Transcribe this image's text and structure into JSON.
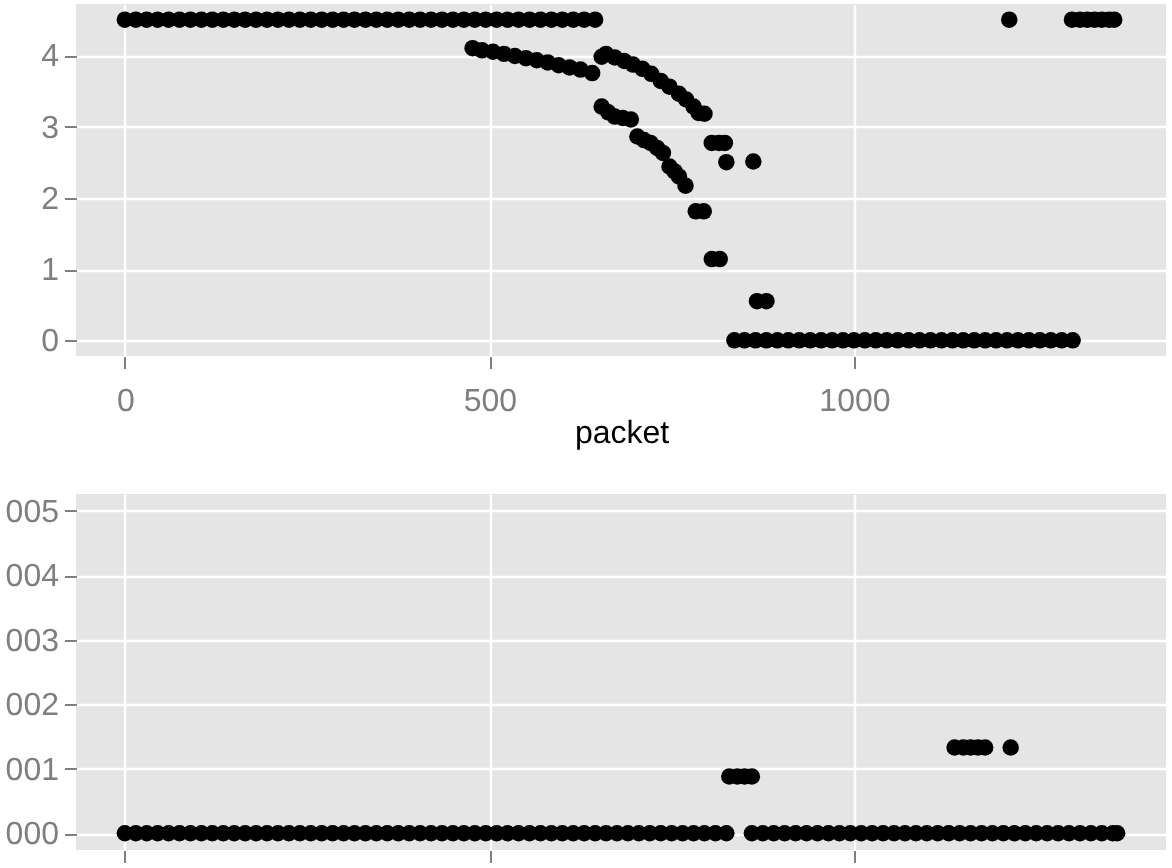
{
  "chart_data": [
    {
      "type": "scatter",
      "xlabel": "packet",
      "marker": "circle",
      "grid": true,
      "xlim": [
        -67,
        1428
      ],
      "ylim": [
        -0.22,
        4.72
      ],
      "xticks": [
        0,
        500,
        1000
      ],
      "yticks": [
        0,
        1,
        2,
        3,
        4
      ],
      "series": [
        {
          "color": "#000000",
          "x": [
            0,
            15,
            30,
            45,
            60,
            75,
            90,
            105,
            120,
            135,
            150,
            165,
            180,
            195,
            210,
            225,
            240,
            255,
            270,
            285,
            300,
            315,
            330,
            345,
            360,
            375,
            390,
            405,
            420,
            435,
            450,
            465,
            480,
            495,
            510,
            525,
            540,
            555,
            570,
            585,
            600,
            615,
            630,
            645,
            477,
            490,
            505,
            520,
            535,
            550,
            565,
            580,
            595,
            610,
            625,
            641,
            654,
            660,
            672,
            685,
            697,
            710,
            722,
            735,
            747,
            760,
            770,
            780,
            787,
            795,
            805,
            815,
            823,
            825,
            862,
            654,
            663,
            672,
            683,
            694,
            703,
            712,
            721,
            730,
            738,
            747,
            754,
            760,
            769,
            783,
            794,
            805,
            816,
            867,
            880,
            836,
            850,
            865,
            880,
            895,
            910,
            925,
            940,
            955,
            970,
            985,
            1000,
            1015,
            1030,
            1045,
            1060,
            1075,
            1090,
            1105,
            1120,
            1135,
            1150,
            1165,
            1180,
            1195,
            1210,
            1225,
            1240,
            1255,
            1270,
            1285,
            1300,
            1213,
            1299,
            1310,
            1320,
            1330,
            1340,
            1350,
            1357
          ],
          "values": [
            4.5,
            4.5,
            4.5,
            4.5,
            4.5,
            4.5,
            4.5,
            4.5,
            4.5,
            4.5,
            4.5,
            4.5,
            4.5,
            4.5,
            4.5,
            4.5,
            4.5,
            4.5,
            4.5,
            4.5,
            4.5,
            4.5,
            4.5,
            4.5,
            4.5,
            4.5,
            4.5,
            4.5,
            4.5,
            4.5,
            4.5,
            4.5,
            4.5,
            4.5,
            4.5,
            4.5,
            4.5,
            4.5,
            4.5,
            4.5,
            4.5,
            4.5,
            4.5,
            4.5,
            4.1,
            4.07,
            4.05,
            4.02,
            3.99,
            3.96,
            3.93,
            3.9,
            3.86,
            3.83,
            3.8,
            3.75,
            3.98,
            4.02,
            3.97,
            3.92,
            3.87,
            3.81,
            3.74,
            3.64,
            3.56,
            3.46,
            3.38,
            3.28,
            3.19,
            3.18,
            2.77,
            2.77,
            2.77,
            2.5,
            2.51,
            3.28,
            3.2,
            3.14,
            3.12,
            3.1,
            2.86,
            2.81,
            2.77,
            2.7,
            2.63,
            2.44,
            2.37,
            2.3,
            2.17,
            1.81,
            1.81,
            1.14,
            1.14,
            0.55,
            0.55,
            0,
            0,
            0,
            0,
            0,
            0,
            0,
            0,
            0,
            0,
            0,
            0,
            0,
            0,
            0,
            0,
            0,
            0,
            0,
            0,
            0,
            0,
            0,
            0,
            0,
            0,
            0,
            0,
            0,
            0,
            0,
            0,
            4.5,
            4.5,
            4.5,
            4.5,
            4.5,
            4.5,
            4.5,
            4.5
          ]
        }
      ]
    },
    {
      "type": "scatter",
      "marker": "circle",
      "grid": true,
      "tick_labels": "y",
      "xlim": [
        -67,
        1428
      ],
      "ylim": [
        -0.26,
        5.26
      ],
      "xticks": [
        0,
        500,
        1000
      ],
      "yticks": [
        {
          "value": 0,
          "label": "000"
        },
        {
          "value": 1,
          "label": "001"
        },
        {
          "value": 2,
          "label": "002"
        },
        {
          "value": 3,
          "label": "003"
        },
        {
          "value": 4,
          "label": "004"
        },
        {
          "value": 5,
          "label": "005"
        }
      ],
      "series": [
        {
          "color": "#000000",
          "x": [
            0,
            15,
            30,
            45,
            60,
            75,
            90,
            105,
            120,
            135,
            150,
            165,
            180,
            195,
            210,
            225,
            240,
            255,
            270,
            285,
            300,
            315,
            330,
            345,
            360,
            375,
            390,
            405,
            420,
            435,
            450,
            465,
            480,
            495,
            510,
            525,
            540,
            555,
            570,
            585,
            600,
            615,
            630,
            645,
            660,
            675,
            690,
            705,
            720,
            735,
            750,
            765,
            780,
            795,
            810,
            825,
            860,
            875,
            890,
            905,
            920,
            935,
            950,
            965,
            980,
            995,
            1010,
            1025,
            1040,
            1055,
            1070,
            1085,
            1100,
            1115,
            1130,
            1145,
            1160,
            1175,
            1190,
            1205,
            1220,
            1235,
            1250,
            1265,
            1280,
            1295,
            1310,
            1325,
            1340,
            1355,
            1361,
            829,
            840,
            850,
            860,
            1138,
            1150,
            1160,
            1170,
            1180,
            1215
          ],
          "values": [
            0,
            0,
            0,
            0,
            0,
            0,
            0,
            0,
            0,
            0,
            0,
            0,
            0,
            0,
            0,
            0,
            0,
            0,
            0,
            0,
            0,
            0,
            0,
            0,
            0,
            0,
            0,
            0,
            0,
            0,
            0,
            0,
            0,
            0,
            0,
            0,
            0,
            0,
            0,
            0,
            0,
            0,
            0,
            0,
            0,
            0,
            0,
            0,
            0,
            0,
            0,
            0,
            0,
            0,
            0,
            0,
            0,
            0,
            0,
            0,
            0,
            0,
            0,
            0,
            0,
            0,
            0,
            0,
            0,
            0,
            0,
            0,
            0,
            0,
            0,
            0,
            0,
            0,
            0,
            0,
            0,
            0,
            0,
            0,
            0,
            0,
            0,
            0,
            0,
            0,
            0,
            0.88,
            0.88,
            0.88,
            0.88,
            1.33,
            1.33,
            1.33,
            1.33,
            1.33,
            1.33
          ]
        }
      ]
    }
  ]
}
